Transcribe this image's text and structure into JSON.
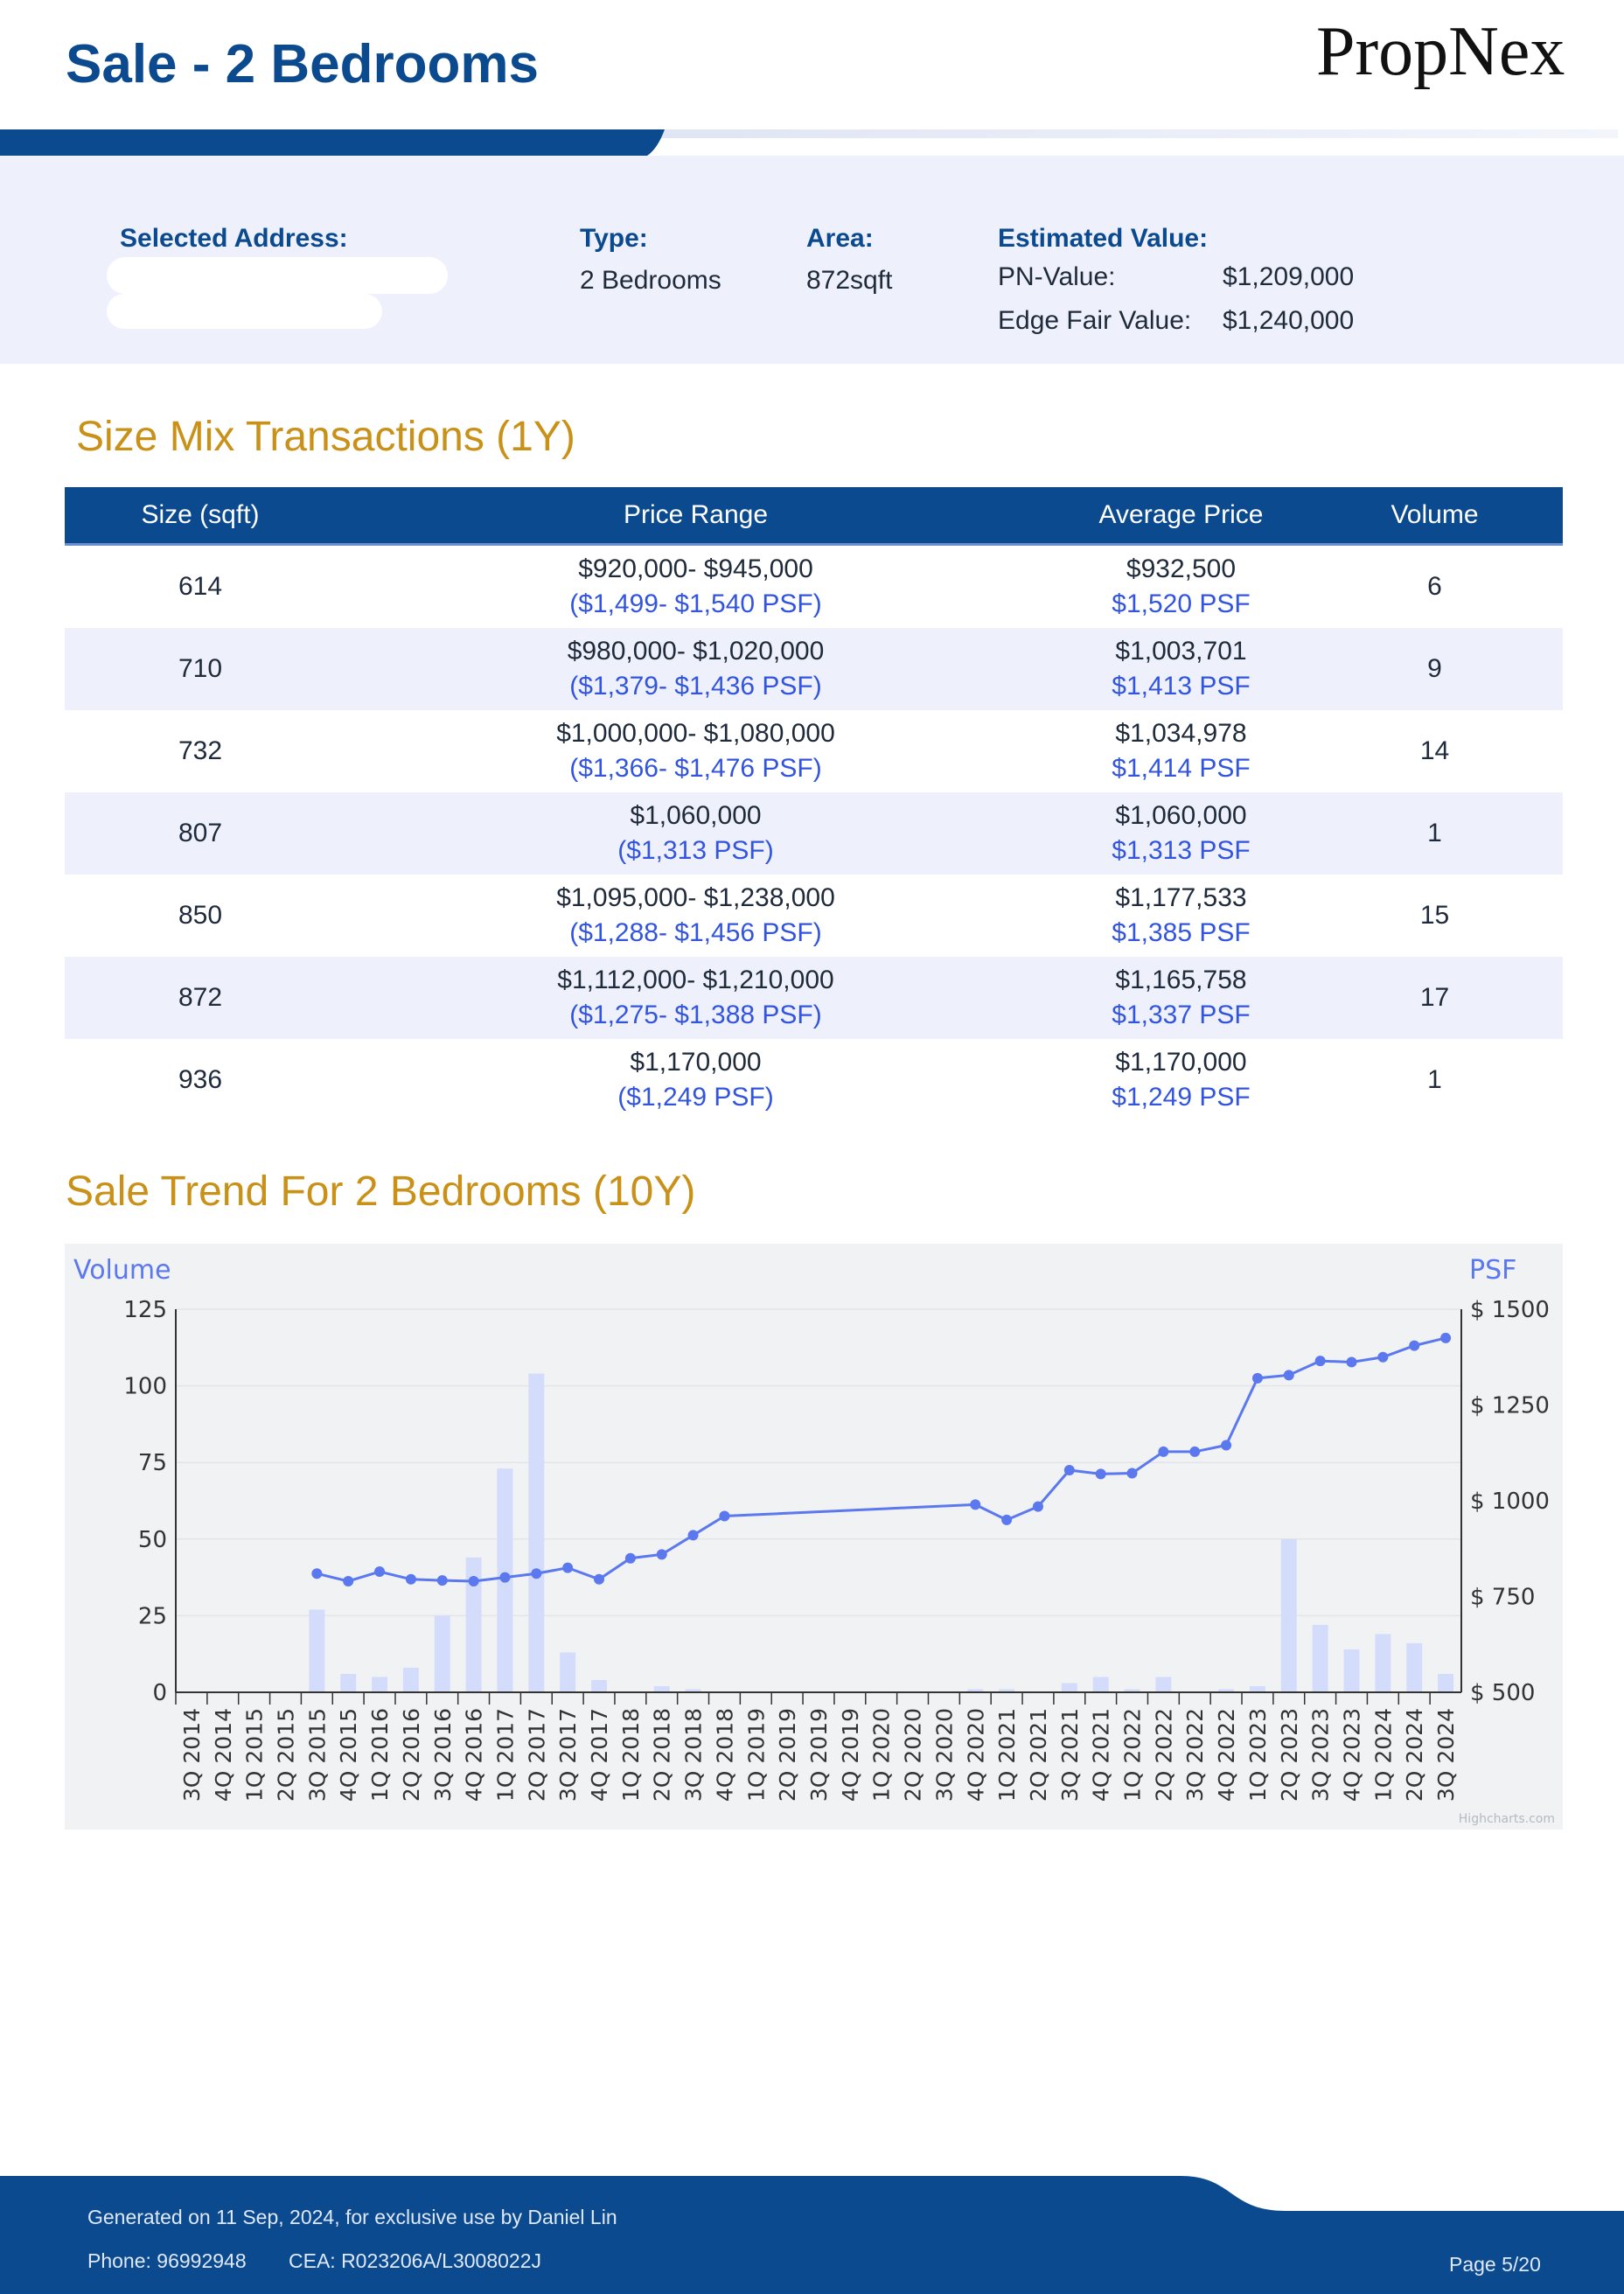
{
  "header": {
    "title": "Sale - 2 Bedrooms",
    "brand": "PropNex"
  },
  "info": {
    "selected_address_label": "Selected Address:",
    "type_label": "Type:",
    "type_value": "2 Bedrooms",
    "area_label": "Area:",
    "area_value": "872sqft",
    "estimated_value_label": "Estimated Value:",
    "pn_value_label": "PN-Value:",
    "pn_value": "$1,209,000",
    "edge_label": "Edge Fair Value:",
    "edge_value": "$1,240,000"
  },
  "size_mix": {
    "title": "Size Mix Transactions (1Y)",
    "headers": [
      "Size (sqft)",
      "Price Range",
      "Average Price",
      "Volume"
    ],
    "rows": [
      {
        "size": "614",
        "range": "$920,000- $945,000",
        "range_psf": "($1,499- $1,540 PSF)",
        "avg": "$932,500",
        "avg_psf": "$1,520 PSF",
        "volume": "6"
      },
      {
        "size": "710",
        "range": "$980,000- $1,020,000",
        "range_psf": "($1,379- $1,436 PSF)",
        "avg": "$1,003,701",
        "avg_psf": "$1,413 PSF",
        "volume": "9"
      },
      {
        "size": "732",
        "range": "$1,000,000- $1,080,000",
        "range_psf": "($1,366- $1,476 PSF)",
        "avg": "$1,034,978",
        "avg_psf": "$1,414 PSF",
        "volume": "14"
      },
      {
        "size": "807",
        "range": "$1,060,000",
        "range_psf": "($1,313 PSF)",
        "avg": "$1,060,000",
        "avg_psf": "$1,313 PSF",
        "volume": "1"
      },
      {
        "size": "850",
        "range": "$1,095,000- $1,238,000",
        "range_psf": "($1,288- $1,456 PSF)",
        "avg": "$1,177,533",
        "avg_psf": "$1,385 PSF",
        "volume": "15"
      },
      {
        "size": "872",
        "range": "$1,112,000- $1,210,000",
        "range_psf": "($1,275- $1,388 PSF)",
        "avg": "$1,165,758",
        "avg_psf": "$1,337 PSF",
        "volume": "17"
      },
      {
        "size": "936",
        "range": "$1,170,000",
        "range_psf": "($1,249 PSF)",
        "avg": "$1,170,000",
        "avg_psf": "$1,249 PSF",
        "volume": "1"
      }
    ]
  },
  "trend": {
    "title": "Sale Trend For 2 Bedrooms (10Y)"
  },
  "chart_data": {
    "type": "bar",
    "left_axis_title": "Volume",
    "right_axis_title": "PSF",
    "credit": "Highcharts.com",
    "categories": [
      "3Q 2014",
      "4Q 2014",
      "1Q 2015",
      "2Q 2015",
      "3Q 2015",
      "4Q 2015",
      "1Q 2016",
      "2Q 2016",
      "3Q 2016",
      "4Q 2016",
      "1Q 2017",
      "2Q 2017",
      "3Q 2017",
      "4Q 2017",
      "1Q 2018",
      "2Q 2018",
      "3Q 2018",
      "4Q 2018",
      "1Q 2019",
      "2Q 2019",
      "3Q 2019",
      "4Q 2019",
      "1Q 2020",
      "2Q 2020",
      "3Q 2020",
      "4Q 2020",
      "1Q 2021",
      "2Q 2021",
      "3Q 2021",
      "4Q 2021",
      "1Q 2022",
      "2Q 2022",
      "3Q 2022",
      "4Q 2022",
      "1Q 2023",
      "2Q 2023",
      "3Q 2023",
      "4Q 2023",
      "1Q 2024",
      "2Q 2024",
      "3Q 2024"
    ],
    "ylim_left": [
      0,
      125
    ],
    "left_ticks": [
      0,
      25,
      50,
      75,
      100,
      125
    ],
    "ylim_right": [
      500,
      1500
    ],
    "right_ticks": [
      "$ 500",
      "$ 750",
      "$ 1000",
      "$ 1250",
      "$ 1500"
    ],
    "right_tick_values": [
      500,
      750,
      1000,
      1250,
      1500
    ],
    "series": [
      {
        "type": "bar",
        "axis": "left",
        "color": "#d4dcfb",
        "values": [
          0,
          0,
          0,
          0,
          27,
          6,
          5,
          8,
          25,
          44,
          73,
          104,
          13,
          4,
          0,
          2,
          1,
          0,
          0,
          0,
          0,
          0,
          0,
          0,
          0,
          1,
          1,
          0,
          3,
          5,
          1,
          5,
          0,
          1,
          2,
          50,
          22,
          14,
          19,
          16,
          6
        ]
      },
      {
        "type": "line",
        "axis": "right",
        "color": "#5b78ee",
        "values": [
          null,
          null,
          null,
          null,
          810,
          790,
          815,
          795,
          792,
          790,
          800,
          810,
          825,
          795,
          850,
          860,
          910,
          960,
          null,
          null,
          null,
          null,
          null,
          null,
          null,
          990,
          950,
          985,
          1080,
          1070,
          1072,
          1128,
          1128,
          1145,
          1320,
          1328,
          1365,
          1362,
          1375,
          1405,
          1425
        ]
      }
    ],
    "grid": true
  },
  "footer": {
    "generated": "Generated on 11 Sep, 2024, for exclusive use by Daniel Lin",
    "phone": "Phone: 96992948",
    "cea": "CEA: R023206A/L3008022J",
    "page": "Page 5/20"
  }
}
